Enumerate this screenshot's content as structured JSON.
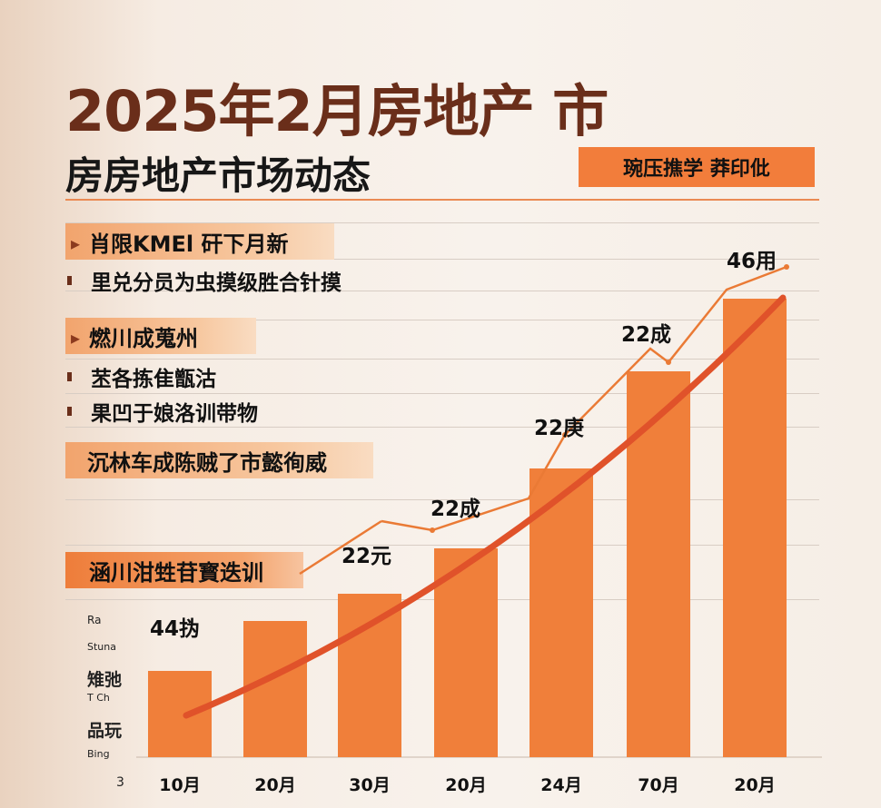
{
  "header": {
    "title": "2025年2月房地产 市",
    "subtitle": "房房地产市场动态",
    "tag": "琬压撨学 莽印仳"
  },
  "sections": [
    {
      "heading": "肖限KMEl 矸下月新",
      "bullets": [
        "里兑分员为虫摸级胜合针摸"
      ]
    },
    {
      "heading": "燃川成蒐州",
      "bullets": [
        "苤各拣隹甑沽",
        "果凹于娘洛训带物"
      ]
    },
    {
      "heading": "沉林车成陈贼了市懿徇威",
      "bullets": []
    },
    {
      "heading": "涵川泔甡苷寳迭训",
      "bullets": []
    }
  ],
  "y_axis_labels": [
    "Ra",
    "Stuna",
    "雉弛",
    "T Ch",
    "品玩",
    "Bing",
    "3"
  ],
  "chart_data": {
    "type": "bar",
    "categories": [
      "10月",
      "20月",
      "30月",
      "20月",
      "24月",
      "70月",
      "20月"
    ],
    "values": [
      95,
      150,
      180,
      230,
      318,
      425,
      505
    ],
    "ylim": [
      0,
      560
    ],
    "bar_color": "#f07f3a",
    "data_labels": [
      "44㧑",
      "",
      "22元",
      "22成",
      "22庚",
      "22成",
      "46用"
    ],
    "line_series": {
      "values": [
        0,
        0,
        260,
        250,
        285,
        355,
        450,
        435,
        515,
        540
      ],
      "color": "#ea7a35"
    },
    "trend_curve": {
      "color": "#e0522a"
    },
    "grid": true
  }
}
